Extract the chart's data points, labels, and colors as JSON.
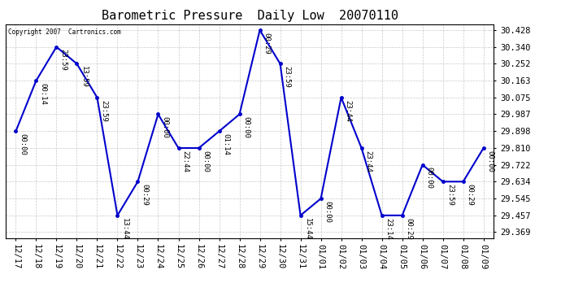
{
  "title": "Barometric Pressure  Daily Low  20070110",
  "copyright": "Copyright 2007  Cartronics.com",
  "x_labels": [
    "12/17",
    "12/18",
    "12/19",
    "12/20",
    "12/21",
    "12/22",
    "12/23",
    "12/24",
    "12/25",
    "12/26",
    "12/27",
    "12/28",
    "12/29",
    "12/30",
    "12/31",
    "01/01",
    "01/02",
    "01/03",
    "01/04",
    "01/05",
    "01/06",
    "01/07",
    "01/08",
    "01/09"
  ],
  "y_values": [
    29.898,
    30.163,
    30.34,
    30.252,
    30.075,
    29.457,
    29.634,
    29.987,
    29.81,
    29.81,
    29.898,
    29.987,
    30.428,
    30.252,
    29.457,
    29.545,
    30.075,
    29.81,
    29.457,
    29.457,
    29.722,
    29.634,
    29.634,
    29.81
  ],
  "point_labels": [
    "00:00",
    "00:14",
    "23:59",
    "13:59",
    "23:59",
    "13:44",
    "00:29",
    "00:00",
    "22:44",
    "00:00",
    "01:14",
    "00:00",
    "00:29",
    "23:59",
    "15:44",
    "00:00",
    "23:44",
    "23:44",
    "23:14",
    "00:29",
    "00:00",
    "23:59",
    "00:29",
    "00:00"
  ],
  "y_ticks": [
    29.369,
    29.457,
    29.545,
    29.634,
    29.722,
    29.81,
    29.898,
    29.987,
    30.075,
    30.163,
    30.252,
    30.34,
    30.428
  ],
  "ylim": [
    29.339,
    30.458
  ],
  "line_color": "#0000cc",
  "marker_color": "#0000cc",
  "background_color": "#ffffff",
  "grid_color": "#bbbbbb",
  "title_fontsize": 11,
  "label_fontsize": 7.5,
  "point_label_fontsize": 6.5
}
